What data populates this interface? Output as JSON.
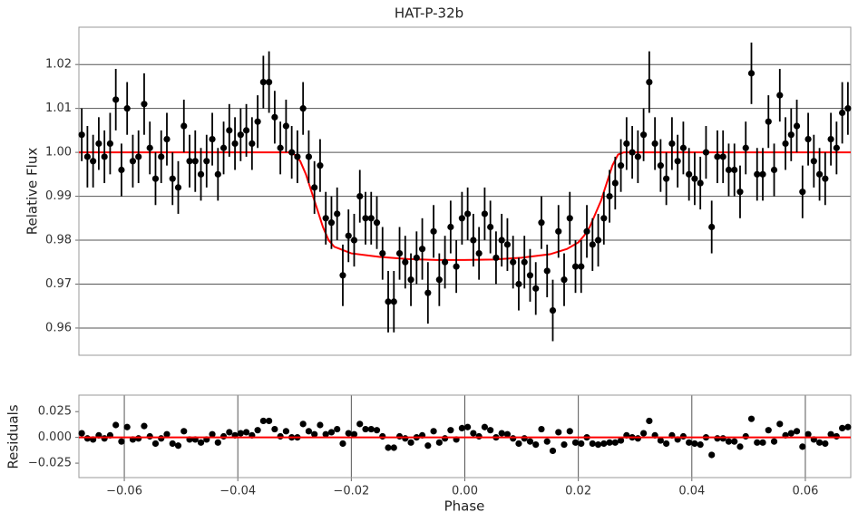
{
  "chart_data": [
    {
      "type": "scatter",
      "title": "HAT-P-32b",
      "ylabel": "Relative Flux",
      "x": [
        -0.0675,
        -0.0665,
        -0.0655,
        -0.0645,
        -0.0635,
        -0.0625,
        -0.0615,
        -0.0605,
        -0.0595,
        -0.0585,
        -0.0575,
        -0.0565,
        -0.0555,
        -0.0545,
        -0.0535,
        -0.0525,
        -0.0515,
        -0.0505,
        -0.0495,
        -0.0485,
        -0.0475,
        -0.0465,
        -0.0455,
        -0.0445,
        -0.0435,
        -0.0425,
        -0.0415,
        -0.0405,
        -0.0395,
        -0.0385,
        -0.0375,
        -0.0365,
        -0.0355,
        -0.0345,
        -0.0335,
        -0.0325,
        -0.0315,
        -0.0305,
        -0.0295,
        -0.0285,
        -0.0275,
        -0.0265,
        -0.0255,
        -0.0245,
        -0.0235,
        -0.0225,
        -0.0215,
        -0.0205,
        -0.0195,
        -0.0185,
        -0.0175,
        -0.0165,
        -0.0155,
        -0.0145,
        -0.0135,
        -0.0125,
        -0.0115,
        -0.0105,
        -0.0095,
        -0.0085,
        -0.0075,
        -0.0065,
        -0.0055,
        -0.0045,
        -0.0035,
        -0.0025,
        -0.0015,
        -0.0005,
        0.0005,
        0.0015,
        0.0025,
        0.0035,
        0.0045,
        0.0055,
        0.0065,
        0.0075,
        0.0085,
        0.0095,
        0.0105,
        0.0115,
        0.0125,
        0.0135,
        0.0145,
        0.0155,
        0.0165,
        0.0175,
        0.0185,
        0.0195,
        0.0205,
        0.0215,
        0.0225,
        0.0235,
        0.0245,
        0.0255,
        0.0265,
        0.0275,
        0.0285,
        0.0295,
        0.0305,
        0.0315,
        0.0325,
        0.0335,
        0.0345,
        0.0355,
        0.0365,
        0.0375,
        0.0385,
        0.0395,
        0.0405,
        0.0415,
        0.0425,
        0.0435,
        0.0445,
        0.0455,
        0.0465,
        0.0475,
        0.0485,
        0.0495,
        0.0505,
        0.0515,
        0.0525,
        0.0535,
        0.0545,
        0.0555,
        0.0565,
        0.0575,
        0.0585,
        0.0595,
        0.0605,
        0.0615,
        0.0625,
        0.0635,
        0.0645,
        0.0655,
        0.0665,
        0.0675
      ],
      "points": {
        "color": "#000000",
        "values": [
          1.004,
          0.999,
          0.998,
          1.002,
          0.999,
          1.002,
          1.012,
          0.996,
          1.01,
          0.998,
          0.999,
          1.011,
          1.001,
          0.994,
          0.999,
          1.003,
          0.994,
          0.992,
          1.006,
          0.998,
          0.998,
          0.995,
          0.998,
          1.003,
          0.995,
          1.001,
          1.005,
          1.002,
          1.004,
          1.005,
          1.002,
          1.007,
          1.016,
          1.016,
          1.008,
          1.001,
          1.006,
          1.0,
          0.999,
          1.01,
          0.999,
          0.992,
          0.997,
          0.985,
          0.984,
          0.986,
          0.972,
          0.981,
          0.98,
          0.99,
          0.985,
          0.985,
          0.984,
          0.977,
          0.966,
          0.966,
          0.977,
          0.975,
          0.971,
          0.976,
          0.978,
          0.968,
          0.982,
          0.971,
          0.975,
          0.983,
          0.974,
          0.985,
          0.986,
          0.98,
          0.977,
          0.986,
          0.983,
          0.976,
          0.98,
          0.979,
          0.975,
          0.97,
          0.975,
          0.972,
          0.969,
          0.984,
          0.973,
          0.964,
          0.982,
          0.971,
          0.985,
          0.974,
          0.974,
          0.982,
          0.979,
          0.98,
          0.985,
          0.99,
          0.993,
          0.997,
          1.002,
          1.0,
          0.999,
          1.004,
          1.016,
          1.002,
          0.997,
          0.994,
          1.002,
          0.998,
          1.001,
          0.995,
          0.994,
          0.993,
          1.0,
          0.983,
          0.999,
          0.999,
          0.996,
          0.996,
          0.991,
          1.001,
          1.018,
          0.995,
          0.995,
          1.007,
          0.996,
          1.013,
          1.002,
          1.004,
          1.006,
          0.991,
          1.003,
          0.998,
          0.995,
          0.994,
          1.003,
          1.001,
          1.009,
          1.01
        ],
        "errors": [
          0.006,
          0.007,
          0.006,
          0.006,
          0.006,
          0.007,
          0.007,
          0.006,
          0.006,
          0.006,
          0.006,
          0.007,
          0.006,
          0.006,
          0.006,
          0.006,
          0.006,
          0.006,
          0.006,
          0.006,
          0.007,
          0.006,
          0.006,
          0.006,
          0.006,
          0.006,
          0.006,
          0.006,
          0.006,
          0.006,
          0.006,
          0.006,
          0.006,
          0.007,
          0.006,
          0.006,
          0.006,
          0.006,
          0.006,
          0.006,
          0.006,
          0.006,
          0.006,
          0.006,
          0.006,
          0.006,
          0.007,
          0.006,
          0.006,
          0.006,
          0.006,
          0.006,
          0.006,
          0.006,
          0.007,
          0.007,
          0.006,
          0.006,
          0.006,
          0.006,
          0.007,
          0.007,
          0.006,
          0.006,
          0.006,
          0.006,
          0.006,
          0.006,
          0.006,
          0.006,
          0.006,
          0.006,
          0.006,
          0.006,
          0.006,
          0.006,
          0.006,
          0.006,
          0.006,
          0.006,
          0.006,
          0.006,
          0.006,
          0.007,
          0.006,
          0.006,
          0.006,
          0.006,
          0.006,
          0.006,
          0.006,
          0.006,
          0.006,
          0.006,
          0.006,
          0.006,
          0.006,
          0.006,
          0.006,
          0.006,
          0.007,
          0.006,
          0.006,
          0.006,
          0.006,
          0.006,
          0.006,
          0.006,
          0.006,
          0.006,
          0.006,
          0.006,
          0.006,
          0.006,
          0.006,
          0.006,
          0.006,
          0.006,
          0.007,
          0.006,
          0.006,
          0.006,
          0.006,
          0.006,
          0.006,
          0.006,
          0.006,
          0.006,
          0.006,
          0.006,
          0.006,
          0.006,
          0.006,
          0.006,
          0.007,
          0.006
        ]
      },
      "model": {
        "color": "#ff0000",
        "x": [
          -0.068,
          -0.031,
          -0.03,
          -0.029,
          -0.028,
          -0.027,
          -0.026,
          -0.025,
          -0.024,
          -0.023,
          -0.022,
          -0.02,
          -0.015,
          -0.01,
          -0.005,
          0,
          0.005,
          0.01,
          0.015,
          0.018,
          0.02,
          0.021,
          0.022,
          0.023,
          0.024,
          0.025,
          0.026,
          0.027,
          0.028,
          0.068
        ],
        "values": [
          1.0,
          1.0,
          0.9995,
          0.998,
          0.995,
          0.991,
          0.987,
          0.983,
          0.98,
          0.9785,
          0.978,
          0.977,
          0.9762,
          0.9757,
          0.9755,
          0.9755,
          0.9756,
          0.976,
          0.9768,
          0.978,
          0.9795,
          0.981,
          0.983,
          0.986,
          0.989,
          0.993,
          0.997,
          0.9995,
          1.0,
          1.0
        ]
      },
      "xlim": [
        -0.068,
        0.068
      ],
      "ylim": [
        0.9538,
        1.0285
      ],
      "yticks": [
        0.96,
        0.97,
        0.98,
        0.99,
        {
          "value": 1.0,
          "label": "1.00"
        },
        1.01,
        1.02
      ],
      "ygrid": true
    },
    {
      "type": "scatter",
      "ylabel": "Residuals",
      "xlabel": "Phase",
      "points": {
        "color": "#000000",
        "values": [
          0.004,
          -0.001,
          -0.002,
          0.002,
          -0.001,
          0.002,
          0.012,
          -0.004,
          0.01,
          -0.002,
          -0.001,
          0.011,
          0.001,
          -0.006,
          -0.001,
          0.003,
          -0.006,
          -0.008,
          0.006,
          -0.002,
          -0.002,
          -0.005,
          -0.002,
          0.003,
          -0.005,
          0.001,
          0.005,
          0.002,
          0.004,
          0.005,
          0.002,
          0.007,
          0.016,
          0.016,
          0.008,
          0.001,
          0.006,
          0.0,
          0.0,
          0.013,
          0.006,
          0.003,
          0.012,
          0.003,
          0.005,
          0.008,
          -0.006,
          0.004,
          0.003,
          0.013,
          0.008,
          0.008,
          0.007,
          0.001,
          -0.01,
          -0.01,
          0.001,
          -0.001,
          -0.005,
          0.0,
          0.002,
          -0.008,
          0.006,
          -0.005,
          -0.001,
          0.007,
          -0.002,
          0.009,
          0.01,
          0.004,
          0.001,
          0.01,
          0.007,
          0.0,
          0.004,
          0.003,
          -0.001,
          -0.006,
          -0.001,
          -0.004,
          -0.007,
          0.008,
          -0.004,
          -0.013,
          0.005,
          -0.007,
          0.006,
          -0.005,
          -0.006,
          0.0,
          -0.006,
          -0.007,
          -0.006,
          -0.005,
          -0.005,
          -0.003,
          0.002,
          0.0,
          -0.001,
          0.004,
          0.016,
          0.002,
          -0.003,
          -0.006,
          0.002,
          -0.002,
          0.001,
          -0.005,
          -0.006,
          -0.007,
          0.0,
          -0.017,
          -0.001,
          -0.001,
          -0.004,
          -0.004,
          -0.009,
          0.001,
          0.018,
          -0.005,
          -0.005,
          0.007,
          -0.004,
          0.013,
          0.002,
          0.004,
          0.006,
          -0.009,
          0.003,
          -0.002,
          -0.005,
          -0.006,
          0.003,
          0.001,
          0.009,
          0.01
        ]
      },
      "zero_line": {
        "color": "#ff0000",
        "value": 0
      },
      "xlim": [
        -0.068,
        0.068
      ],
      "ylim": [
        -0.039,
        0.041
      ],
      "xticks": [
        {
          "value": -0.06,
          "label": "−0.06"
        },
        {
          "value": -0.04,
          "label": "−0.04"
        },
        {
          "value": -0.02,
          "label": "−0.02"
        },
        {
          "value": 0,
          "label": "0.00"
        },
        0.02,
        0.04,
        0.06
      ],
      "yticks": [
        {
          "value": -0.025,
          "label": "−0.025"
        },
        {
          "value": 0,
          "label": "0.000"
        },
        0.025
      ],
      "xgrid": true
    }
  ]
}
